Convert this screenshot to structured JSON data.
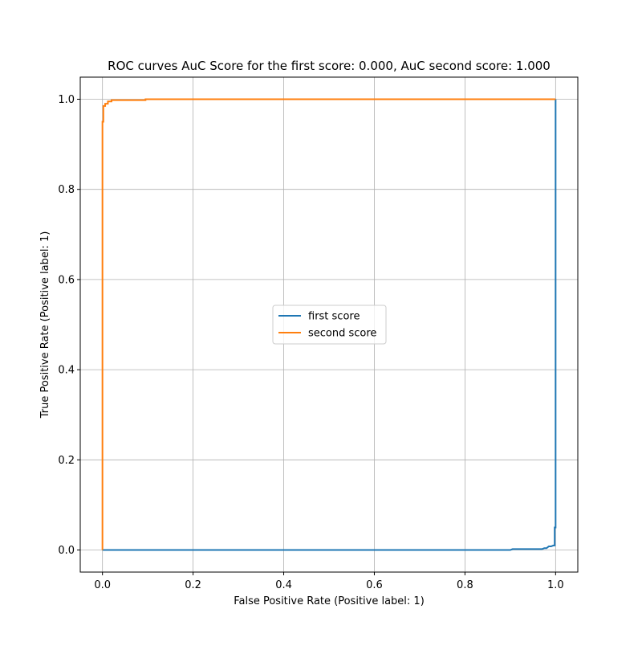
{
  "chart_data": {
    "type": "line",
    "title": "ROC curves AuC Score for the first score: 0.000, AuC second score: 1.000",
    "xlabel": "False Positive Rate (Positive label: 1)",
    "ylabel": "True Positive Rate (Positive label: 1)",
    "xlim": [
      -0.049,
      1.049
    ],
    "ylim": [
      -0.049,
      1.049
    ],
    "xticks": [
      0.0,
      0.2,
      0.4,
      0.6,
      0.8,
      1.0
    ],
    "yticks": [
      0.0,
      0.2,
      0.4,
      0.6,
      0.8,
      1.0
    ],
    "xtick_labels": [
      "0.0",
      "0.2",
      "0.4",
      "0.6",
      "0.8",
      "1.0"
    ],
    "ytick_labels": [
      "0.0",
      "0.2",
      "0.4",
      "0.6",
      "0.8",
      "1.0"
    ],
    "grid": true,
    "legend_position": "center",
    "series": [
      {
        "name": "first score",
        "color": "#1f77b4",
        "x": [
          0.0,
          0.9,
          0.905,
          0.97,
          0.975,
          0.98,
          0.985,
          0.99,
          0.995,
          0.998,
          0.998,
          1.0,
          1.0
        ],
        "y": [
          0.0,
          0.0,
          0.002,
          0.002,
          0.004,
          0.004,
          0.008,
          0.008,
          0.01,
          0.01,
          0.05,
          0.05,
          1.0
        ]
      },
      {
        "name": "second score",
        "color": "#ff7f0e",
        "x": [
          0.0,
          0.0,
          0.002,
          0.002,
          0.006,
          0.006,
          0.012,
          0.012,
          0.02,
          0.02,
          0.095,
          0.095,
          1.0
        ],
        "y": [
          0.0,
          0.95,
          0.95,
          0.985,
          0.985,
          0.99,
          0.99,
          0.995,
          0.995,
          0.998,
          0.998,
          1.0,
          1.0
        ]
      }
    ]
  }
}
